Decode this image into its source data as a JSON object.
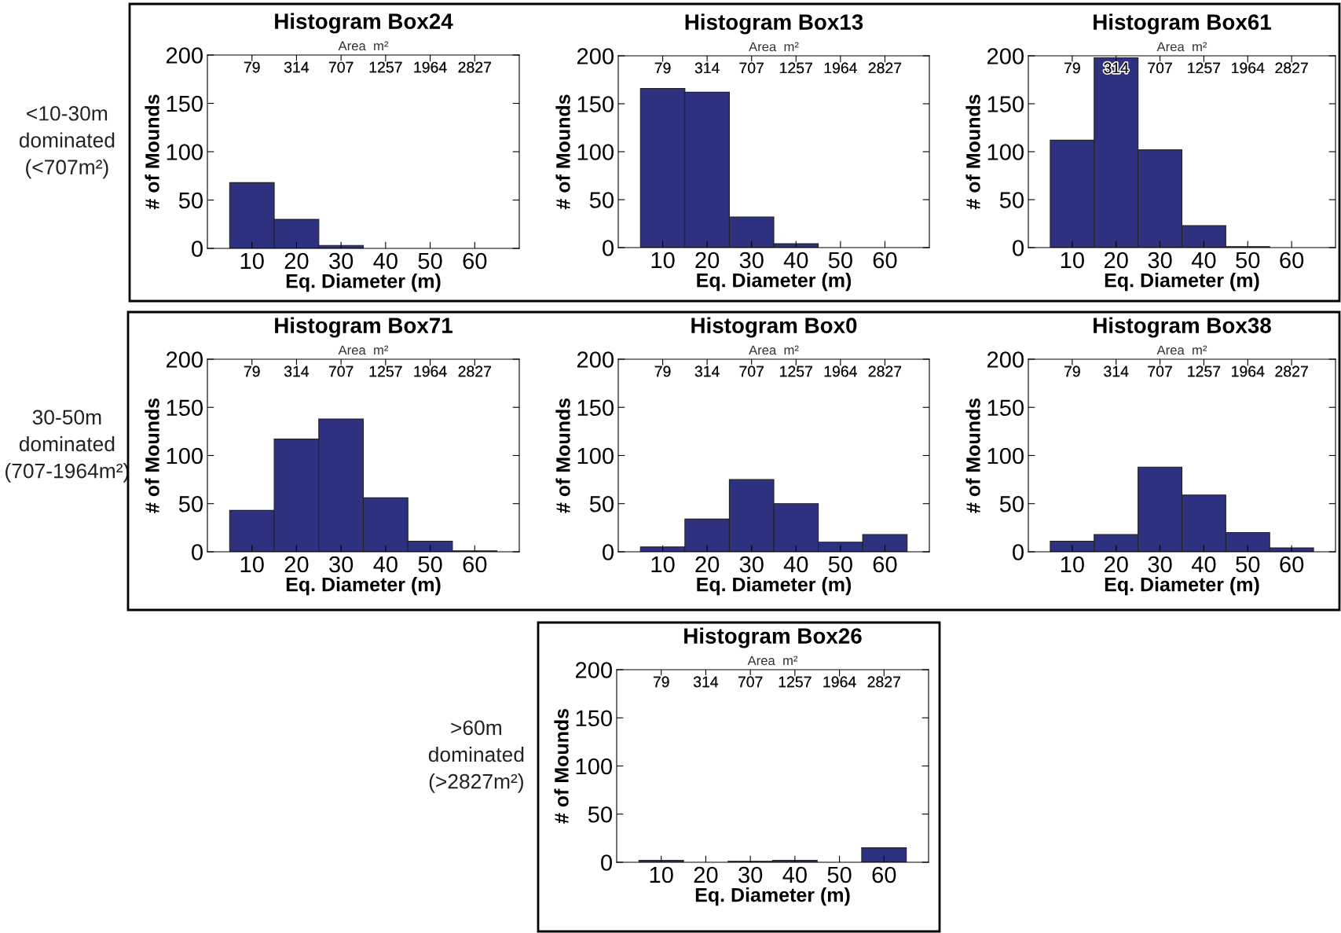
{
  "chart_data": [
    {
      "type": "histogram",
      "title": "Histogram Box24",
      "xlabel": "Eq. Diameter (m)",
      "ylabel": "# of Mounds",
      "annotations": [
        "79",
        "314",
        "707",
        "1257",
        "1964",
        "2827",
        "Area  m²",
        "<10-30m\ndominated\n(<707m²)"
      ],
      "color": "#2e3180",
      "bins": [
        5,
        15,
        25,
        35,
        45,
        55,
        65
      ],
      "values": [
        68,
        30,
        3,
        0,
        0,
        0
      ],
      "xlim": [
        0,
        70
      ],
      "xticks": [
        10,
        20,
        30,
        40,
        50,
        60
      ],
      "ylim": [
        0,
        200
      ],
      "yticks": [
        0,
        50,
        100,
        150,
        200
      ]
    },
    {
      "type": "histogram",
      "title": "Histogram Box13",
      "xlabel": "Eq. Diameter (m)",
      "ylabel": "# of Mounds",
      "annotations": [
        "79",
        "314",
        "707",
        "1257",
        "1964",
        "2827",
        "Area  m²"
      ],
      "color": "#2e3180",
      "bins": [
        5,
        15,
        25,
        35,
        45,
        55,
        65
      ],
      "values": [
        166,
        162,
        32,
        4,
        0,
        0
      ],
      "xlim": [
        0,
        70
      ],
      "xticks": [
        10,
        20,
        30,
        40,
        50,
        60
      ],
      "ylim": [
        0,
        200
      ],
      "yticks": [
        0,
        50,
        100,
        150,
        200
      ]
    },
    {
      "type": "histogram",
      "title": "Histogram Box61",
      "xlabel": "Eq. Diameter (m)",
      "ylabel": "# of Mounds",
      "annotations": [
        "79",
        "314",
        "707",
        "1257",
        "1964",
        "2827",
        "Area  m²"
      ],
      "color": "#2e3180",
      "bins": [
        5,
        15,
        25,
        35,
        45,
        55,
        65
      ],
      "values": [
        112,
        198,
        102,
        23,
        1,
        0
      ],
      "xlim": [
        0,
        70
      ],
      "xticks": [
        10,
        20,
        30,
        40,
        50,
        60
      ],
      "ylim": [
        0,
        200
      ],
      "yticks": [
        0,
        50,
        100,
        150,
        200
      ]
    },
    {
      "type": "histogram",
      "title": "Histogram Box71",
      "xlabel": "Eq. Diameter (m)",
      "ylabel": "# of Mounds",
      "annotations": [
        "79",
        "314",
        "707",
        "1257",
        "1964",
        "2827",
        "Area  m²",
        "30-50m\ndominated\n(707-1964m²)"
      ],
      "color": "#2e3180",
      "bins": [
        5,
        15,
        25,
        35,
        45,
        55,
        65
      ],
      "values": [
        43,
        117,
        138,
        56,
        11,
        1
      ],
      "xlim": [
        0,
        70
      ],
      "xticks": [
        10,
        20,
        30,
        40,
        50,
        60
      ],
      "ylim": [
        0,
        200
      ],
      "yticks": [
        0,
        50,
        100,
        150,
        200
      ]
    },
    {
      "type": "histogram",
      "title": "Histogram Box0",
      "xlabel": "Eq. Diameter (m)",
      "ylabel": "# of Mounds",
      "annotations": [
        "79",
        "314",
        "707",
        "1257",
        "1964",
        "2827",
        "Area  m²"
      ],
      "color": "#2e3180",
      "bins": [
        5,
        15,
        25,
        35,
        45,
        55,
        65
      ],
      "values": [
        5,
        34,
        75,
        50,
        10,
        18
      ],
      "xlim": [
        0,
        70
      ],
      "xticks": [
        10,
        20,
        30,
        40,
        50,
        60
      ],
      "ylim": [
        0,
        200
      ],
      "yticks": [
        0,
        50,
        100,
        150,
        200
      ]
    },
    {
      "type": "histogram",
      "title": "Histogram Box38",
      "xlabel": "Eq. Diameter (m)",
      "ylabel": "# of Mounds",
      "annotations": [
        "79",
        "314",
        "707",
        "1257",
        "1964",
        "2827",
        "Area  m²"
      ],
      "color": "#2e3180",
      "bins": [
        5,
        15,
        25,
        35,
        45,
        55,
        65
      ],
      "values": [
        11,
        18,
        88,
        59,
        20,
        4
      ],
      "xlim": [
        0,
        70
      ],
      "xticks": [
        10,
        20,
        30,
        40,
        50,
        60
      ],
      "ylim": [
        0,
        200
      ],
      "yticks": [
        0,
        50,
        100,
        150,
        200
      ]
    },
    {
      "type": "histogram",
      "title": "Histogram Box26",
      "xlabel": "Eq. Diameter (m)",
      "ylabel": "# of Mounds",
      "annotations": [
        "79",
        "314",
        "707",
        "1257",
        "1964",
        "2827",
        "Area  m²",
        ">60m\ndominated\n(>2827m²)"
      ],
      "color": "#2e3180",
      "bins": [
        5,
        15,
        25,
        35,
        45,
        55,
        65
      ],
      "values": [
        2,
        0,
        1,
        2,
        0,
        15
      ],
      "xlim": [
        0,
        70
      ],
      "xticks": [
        10,
        20,
        30,
        40,
        50,
        60
      ],
      "ylim": [
        0,
        200
      ],
      "yticks": [
        0,
        50,
        100,
        150,
        200
      ]
    }
  ]
}
